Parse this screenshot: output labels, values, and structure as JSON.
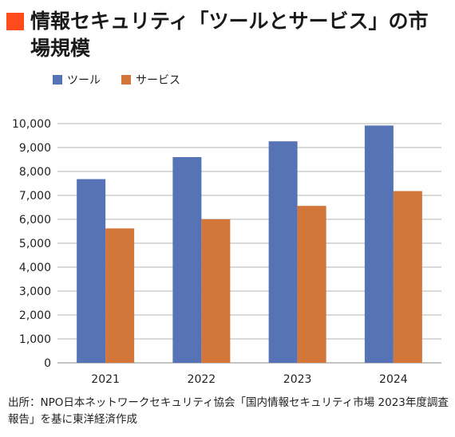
{
  "title": "情報セキュリティ「ツールとサービス」の市場規模",
  "source": "出所：NPO日本ネットワークセキュリティ協会「国内情報セキュリティ市場 2023年度調査報告」を基に東洋経済作成",
  "colors": {
    "title_marker": "#ff4a1c",
    "tool": "#5673b5",
    "service": "#d2763a",
    "grid": "#b5b5b5"
  },
  "chart_data": {
    "type": "bar",
    "categories": [
      "2021",
      "2022",
      "2023",
      "2024"
    ],
    "series": [
      {
        "name": "ツール",
        "values": [
          7680,
          8600,
          9260,
          9920
        ],
        "color": "#5673b5"
      },
      {
        "name": "サービス",
        "values": [
          5620,
          6000,
          6560,
          7180
        ],
        "color": "#d2763a"
      }
    ],
    "yticks": [
      "0",
      "1,000",
      "2,000",
      "3,000",
      "4,000",
      "5,000",
      "6,000",
      "7,000",
      "8,000",
      "9,000",
      "10,000"
    ],
    "ylim": [
      0,
      10000
    ],
    "grid": true,
    "legend": "top-left"
  }
}
